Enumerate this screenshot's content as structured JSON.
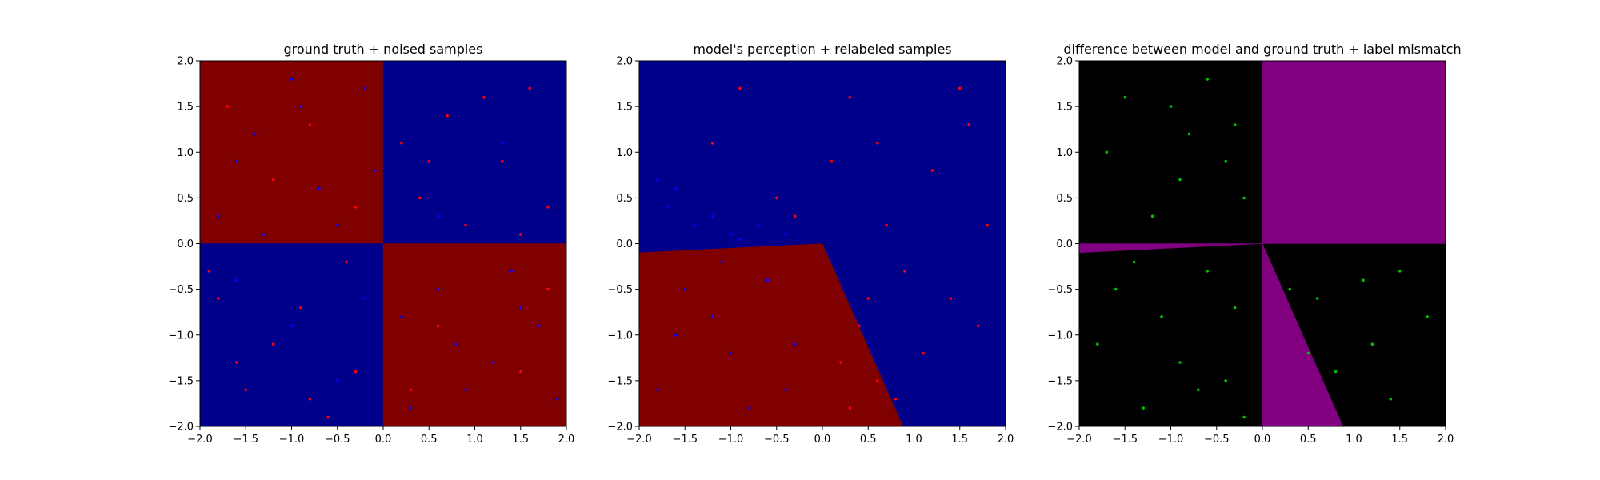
{
  "chart_data": [
    {
      "type": "scatter",
      "title": "ground truth + noised samples",
      "xlabel": "",
      "ylabel": "",
      "xlim": [
        -2.0,
        2.0
      ],
      "ylim": [
        -2.0,
        2.0
      ],
      "grid": false,
      "xticks": [
        "-2.0",
        "-1.5",
        "-1.0",
        "-0.5",
        "0.0",
        "0.5",
        "1.0",
        "1.5",
        "2.0"
      ],
      "yticks": [
        "-2.0",
        "-1.5",
        "-1.0",
        "-0.5",
        "0.0",
        "0.5",
        "1.0",
        "1.5",
        "2.0"
      ],
      "background_regions": [
        {
          "polygon": [
            [
              -2,
              0
            ],
            [
              0,
              0
            ],
            [
              0,
              2
            ],
            [
              -2,
              2
            ]
          ],
          "color": "#800000"
        },
        {
          "polygon": [
            [
              0,
              0
            ],
            [
              2,
              0
            ],
            [
              2,
              2
            ],
            [
              0,
              2
            ]
          ],
          "color": "#00008b"
        },
        {
          "polygon": [
            [
              -2,
              -2
            ],
            [
              0,
              -2
            ],
            [
              0,
              0
            ],
            [
              -2,
              0
            ]
          ],
          "color": "#00008b"
        },
        {
          "polygon": [
            [
              0,
              -2
            ],
            [
              2,
              -2
            ],
            [
              2,
              0
            ],
            [
              0,
              0
            ]
          ],
          "color": "#800000"
        }
      ],
      "series": [
        {
          "color": "#ff0000",
          "points": [
            [
              0.7,
              1.4
            ],
            [
              1.3,
              0.9
            ],
            [
              0.4,
              0.5
            ],
            [
              1.6,
              1.7
            ],
            [
              0.9,
              0.2
            ],
            [
              0.2,
              1.1
            ],
            [
              1.8,
              0.4
            ],
            [
              1.1,
              1.6
            ],
            [
              0.5,
              0.9
            ],
            [
              1.5,
              0.1
            ],
            [
              -1.5,
              -1.6
            ],
            [
              -0.9,
              -0.7
            ],
            [
              -0.3,
              -1.4
            ],
            [
              -1.8,
              -0.6
            ],
            [
              -0.6,
              -1.9
            ],
            [
              -1.2,
              -1.1
            ],
            [
              -0.4,
              -0.2
            ],
            [
              -1.6,
              -1.3
            ],
            [
              -0.8,
              -1.7
            ],
            [
              -1.9,
              -0.3
            ],
            [
              -1.7,
              1.5
            ],
            [
              -0.8,
              1.3
            ],
            [
              -0.3,
              0.4
            ],
            [
              -1.2,
              0.7
            ],
            [
              1.5,
              -1.4
            ],
            [
              0.6,
              -0.9
            ],
            [
              0.3,
              -1.6
            ],
            [
              1.8,
              -0.5
            ]
          ]
        },
        {
          "color": "#0000ff",
          "points": [
            [
              -1.4,
              1.2
            ],
            [
              -0.7,
              0.6
            ],
            [
              -0.2,
              1.7
            ],
            [
              -1.8,
              0.3
            ],
            [
              -1.0,
              1.8
            ],
            [
              -0.5,
              0.2
            ],
            [
              -1.6,
              0.9
            ],
            [
              -0.9,
              1.5
            ],
            [
              -0.1,
              0.8
            ],
            [
              -1.3,
              0.1
            ],
            [
              1.2,
              -1.3
            ],
            [
              0.6,
              -0.5
            ],
            [
              0.3,
              -1.8
            ],
            [
              1.7,
              -0.9
            ],
            [
              0.9,
              -1.6
            ],
            [
              1.4,
              -0.3
            ],
            [
              0.2,
              -0.8
            ],
            [
              1.9,
              -1.7
            ],
            [
              0.8,
              -1.1
            ],
            [
              1.5,
              -0.7
            ],
            [
              1.3,
              1.1
            ],
            [
              0.6,
              0.3
            ],
            [
              -1.0,
              -0.9
            ],
            [
              -0.5,
              -1.5
            ],
            [
              -1.6,
              -0.4
            ],
            [
              -0.2,
              -0.6
            ]
          ]
        }
      ]
    },
    {
      "type": "scatter",
      "title": "model's perception + relabeled samples",
      "xlabel": "",
      "ylabel": "",
      "xlim": [
        -2.0,
        2.0
      ],
      "ylim": [
        -2.0,
        2.0
      ],
      "grid": false,
      "xticks": [
        "-2.0",
        "-1.5",
        "-1.0",
        "-0.5",
        "0.0",
        "0.5",
        "1.0",
        "1.5",
        "2.0"
      ],
      "yticks": [
        "-2.0",
        "-1.5",
        "-1.0",
        "-0.5",
        "0.0",
        "0.5",
        "1.0",
        "1.5",
        "2.0"
      ],
      "background_regions": [
        {
          "polygon": [
            [
              -2,
              2
            ],
            [
              2,
              2
            ],
            [
              2,
              -2
            ],
            [
              0.88,
              -2
            ],
            [
              0,
              0
            ],
            [
              -2,
              -0.1
            ]
          ],
          "color": "#00008b"
        },
        {
          "polygon": [
            [
              -2,
              -0.1
            ],
            [
              0,
              0
            ],
            [
              0.88,
              -2
            ],
            [
              -2,
              -2
            ]
          ],
          "color": "#800000"
        }
      ],
      "series": [
        {
          "color": "#ff0000",
          "points": [
            [
              -1.2,
              1.1
            ],
            [
              -0.5,
              0.5
            ],
            [
              0.3,
              1.6
            ],
            [
              1.2,
              0.8
            ],
            [
              0.7,
              0.2
            ],
            [
              1.6,
              1.3
            ],
            [
              -0.9,
              1.7
            ],
            [
              0.1,
              0.9
            ],
            [
              1.4,
              -0.6
            ],
            [
              0.9,
              -0.3
            ],
            [
              1.1,
              -1.2
            ],
            [
              1.7,
              -0.9
            ],
            [
              0.6,
              -1.5
            ],
            [
              0.3,
              -1.8
            ],
            [
              0.4,
              -0.9
            ],
            [
              0.8,
              -1.7
            ],
            [
              0.5,
              -0.6
            ],
            [
              0.2,
              -1.3
            ],
            [
              1.5,
              1.7
            ],
            [
              -0.3,
              0.3
            ],
            [
              1.8,
              0.2
            ],
            [
              -1.6,
              0.6
            ],
            [
              0.6,
              1.1
            ]
          ]
        },
        {
          "color": "#0000ff",
          "points": [
            [
              -1.5,
              -0.5
            ],
            [
              -1.0,
              -1.2
            ],
            [
              -0.6,
              -0.4
            ],
            [
              -1.8,
              -1.6
            ],
            [
              -0.3,
              -1.1
            ],
            [
              -1.2,
              -0.8
            ],
            [
              -0.8,
              -1.8
            ],
            [
              -1.6,
              -1.0
            ],
            [
              -0.4,
              -1.6
            ],
            [
              -1.1,
              -0.2
            ],
            [
              -1.7,
              0.4
            ],
            [
              -1.4,
              0.2
            ],
            [
              -1.2,
              0.3
            ],
            [
              -1.0,
              0.1
            ],
            [
              -0.7,
              0.2
            ],
            [
              -1.6,
              0.6
            ],
            [
              -0.4,
              0.1
            ],
            [
              -1.8,
              0.7
            ],
            [
              -0.9,
              0.05
            ]
          ]
        }
      ]
    },
    {
      "type": "scatter",
      "title": "difference between model and ground truth + label mismatch",
      "xlabel": "",
      "ylabel": "",
      "xlim": [
        -2.0,
        2.0
      ],
      "ylim": [
        -2.0,
        2.0
      ],
      "grid": false,
      "xticks": [
        "-2.0",
        "-1.5",
        "-1.0",
        "-0.5",
        "0.0",
        "0.5",
        "1.0",
        "1.5",
        "2.0"
      ],
      "yticks": [
        "-2.0",
        "-1.5",
        "-1.0",
        "-0.5",
        "0.0",
        "0.5",
        "1.0",
        "1.5",
        "2.0"
      ],
      "background_regions": [
        {
          "polygon": [
            [
              -2,
              -2
            ],
            [
              2,
              -2
            ],
            [
              2,
              2
            ],
            [
              -2,
              2
            ]
          ],
          "color": "#000000"
        },
        {
          "polygon": [
            [
              0,
              0
            ],
            [
              2,
              0
            ],
            [
              2,
              2
            ],
            [
              0,
              2
            ]
          ],
          "color": "#800080"
        },
        {
          "polygon": [
            [
              -2,
              0
            ],
            [
              0,
              0
            ],
            [
              -2,
              -0.1
            ]
          ],
          "color": "#800080"
        },
        {
          "polygon": [
            [
              0,
              0
            ],
            [
              0.88,
              -2
            ],
            [
              0,
              -2
            ]
          ],
          "color": "#800080"
        }
      ],
      "series": [
        {
          "color": "#00c000",
          "points": [
            [
              -1.5,
              1.6
            ],
            [
              -0.9,
              0.7
            ],
            [
              -0.3,
              1.3
            ],
            [
              -1.2,
              0.3
            ],
            [
              -0.6,
              1.8
            ],
            [
              -0.2,
              0.5
            ],
            [
              -1.7,
              1.0
            ],
            [
              -0.8,
              1.2
            ],
            [
              -0.4,
              0.9
            ],
            [
              -1.0,
              1.5
            ],
            [
              -1.6,
              -0.5
            ],
            [
              -0.9,
              -1.3
            ],
            [
              -0.3,
              -0.7
            ],
            [
              -1.3,
              -1.8
            ],
            [
              -0.6,
              -0.3
            ],
            [
              -1.8,
              -1.1
            ],
            [
              -0.4,
              -1.5
            ],
            [
              -1.1,
              -0.8
            ],
            [
              -0.7,
              -1.6
            ],
            [
              -1.4,
              -0.2
            ],
            [
              0.6,
              -0.6
            ],
            [
              1.2,
              -1.1
            ],
            [
              1.5,
              -0.3
            ],
            [
              0.8,
              -1.4
            ],
            [
              1.8,
              -0.8
            ],
            [
              1.1,
              -0.4
            ],
            [
              1.4,
              -1.7
            ],
            [
              0.5,
              -1.2
            ],
            [
              0.3,
              -0.5
            ],
            [
              -0.2,
              -1.9
            ]
          ]
        }
      ]
    }
  ]
}
